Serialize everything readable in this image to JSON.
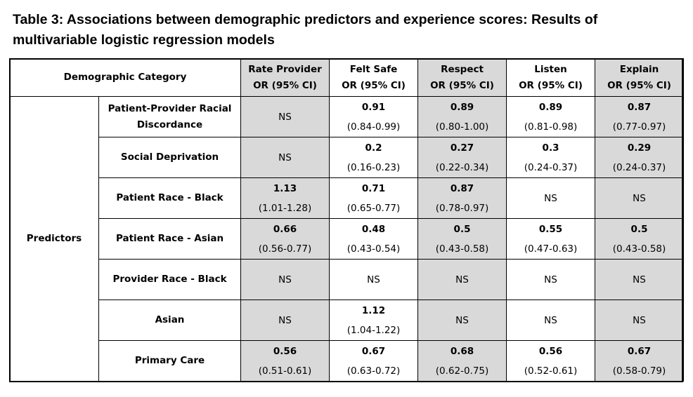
{
  "title": "Table 3: Associations between demographic predictors and experience scores: Results of multivariable logistic regression models",
  "table": {
    "header": {
      "category": "Demographic Category",
      "columns": [
        {
          "name": "Rate Provider",
          "sub": "OR (95% CI)"
        },
        {
          "name": "Felt Safe",
          "sub": "OR (95% CI)"
        },
        {
          "name": "Respect",
          "sub": "OR (95% CI)"
        },
        {
          "name": "Listen",
          "sub": "OR (95% CI)"
        },
        {
          "name": "Explain",
          "sub": "OR (95% CI)"
        }
      ]
    },
    "group_label": "Predictors",
    "rows": [
      {
        "label": "Patient-Provider Racial Discordance",
        "cells": [
          {
            "ns": "NS"
          },
          {
            "or": "0.91",
            "ci": "(0.84-0.99)"
          },
          {
            "or": "0.89",
            "ci": "(0.80-1.00)"
          },
          {
            "or": "0.89",
            "ci": "(0.81-0.98)"
          },
          {
            "or": "0.87",
            "ci": "(0.77-0.97)"
          }
        ]
      },
      {
        "label": "Social Deprivation",
        "cells": [
          {
            "ns": "NS"
          },
          {
            "or": "0.2",
            "ci": "(0.16-0.23)"
          },
          {
            "or": "0.27",
            "ci": "(0.22-0.34)"
          },
          {
            "or": "0.3",
            "ci": "(0.24-0.37)"
          },
          {
            "or": "0.29",
            "ci": "(0.24-0.37)"
          }
        ]
      },
      {
        "label": "Patient Race - Black",
        "cells": [
          {
            "or": "1.13",
            "ci": "(1.01-1.28)"
          },
          {
            "or": "0.71",
            "ci": "(0.65-0.77)"
          },
          {
            "or": "0.87",
            "ci": "(0.78-0.97)"
          },
          {
            "ns": "NS"
          },
          {
            "ns": "NS"
          }
        ]
      },
      {
        "label": "Patient Race - Asian",
        "cells": [
          {
            "or": "0.66",
            "ci": "(0.56-0.77)"
          },
          {
            "or": "0.48",
            "ci": "(0.43-0.54)"
          },
          {
            "or": "0.5",
            "ci": "(0.43-0.58)"
          },
          {
            "or": "0.55",
            "ci": "(0.47-0.63)"
          },
          {
            "or": "0.5",
            "ci": "(0.43-0.58)"
          }
        ]
      },
      {
        "label": "Provider Race - Black",
        "cells": [
          {
            "ns": "NS"
          },
          {
            "ns": "NS"
          },
          {
            "ns": "NS"
          },
          {
            "ns": "NS"
          },
          {
            "ns": "NS"
          }
        ]
      },
      {
        "label": "Asian",
        "cells": [
          {
            "ns": "NS"
          },
          {
            "or": "1.12",
            "ci": "(1.04-1.22)"
          },
          {
            "ns": "NS"
          },
          {
            "ns": "NS"
          },
          {
            "ns": "NS"
          }
        ]
      },
      {
        "label": "Primary Care",
        "cells": [
          {
            "or": "0.56",
            "ci": "(0.51-0.61)"
          },
          {
            "or": "0.67",
            "ci": "(0.63-0.72)"
          },
          {
            "or": "0.68",
            "ci": "(0.62-0.75)"
          },
          {
            "or": "0.56",
            "ci": "(0.52-0.61)"
          },
          {
            "or": "0.67",
            "ci": "(0.58-0.79)"
          }
        ]
      }
    ],
    "shade_color": "#d9d9d9",
    "border_color": "#000000"
  }
}
